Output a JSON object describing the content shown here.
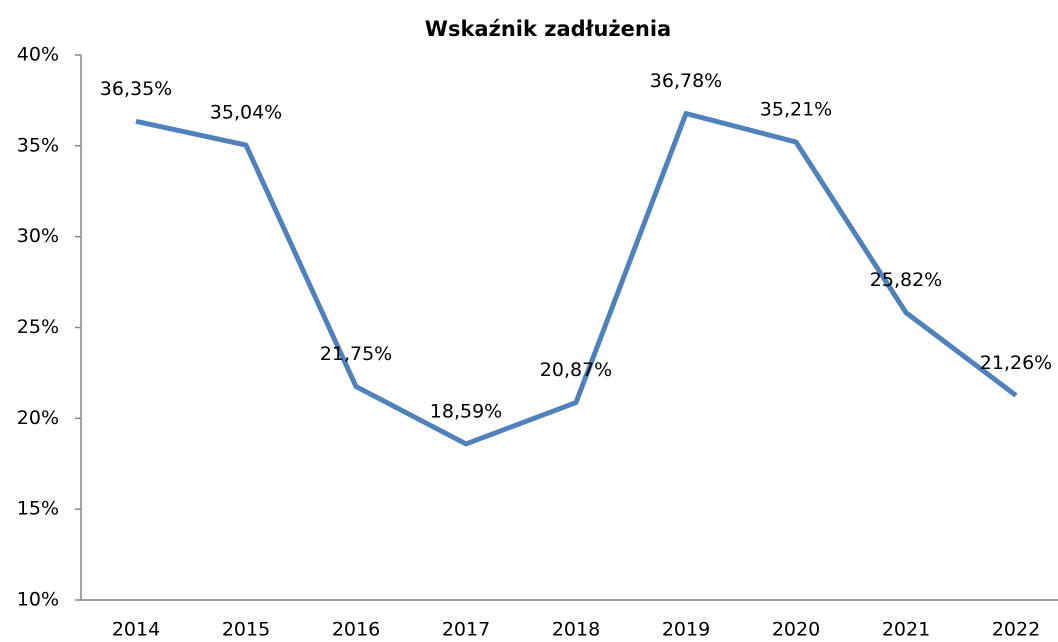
{
  "chart_data": {
    "type": "line",
    "title": "Wskaźnik zadłużenia",
    "categories": [
      "2014",
      "2015",
      "2016",
      "2017",
      "2018",
      "2019",
      "2020",
      "2021",
      "2022"
    ],
    "series": [
      {
        "name": "Wskaźnik zadłużenia",
        "color": "#4f81bd",
        "values": [
          36.35,
          35.04,
          21.75,
          18.59,
          20.87,
          36.78,
          35.21,
          25.82,
          21.26
        ],
        "value_labels": [
          "36,35%",
          "35,04%",
          "21,75%",
          "18,59%",
          "20,87%",
          "36,78%",
          "35,21%",
          "25,82%",
          "21,26%"
        ]
      }
    ],
    "ylim": [
      10,
      40
    ],
    "yticks": [
      {
        "value": 10,
        "label": "10%"
      },
      {
        "value": 15,
        "label": "15%"
      },
      {
        "value": 20,
        "label": "20%"
      },
      {
        "value": 25,
        "label": "25%"
      },
      {
        "value": 30,
        "label": "30%"
      },
      {
        "value": 35,
        "label": "35%"
      },
      {
        "value": 40,
        "label": "40%"
      }
    ],
    "grid": false,
    "legend": false
  }
}
